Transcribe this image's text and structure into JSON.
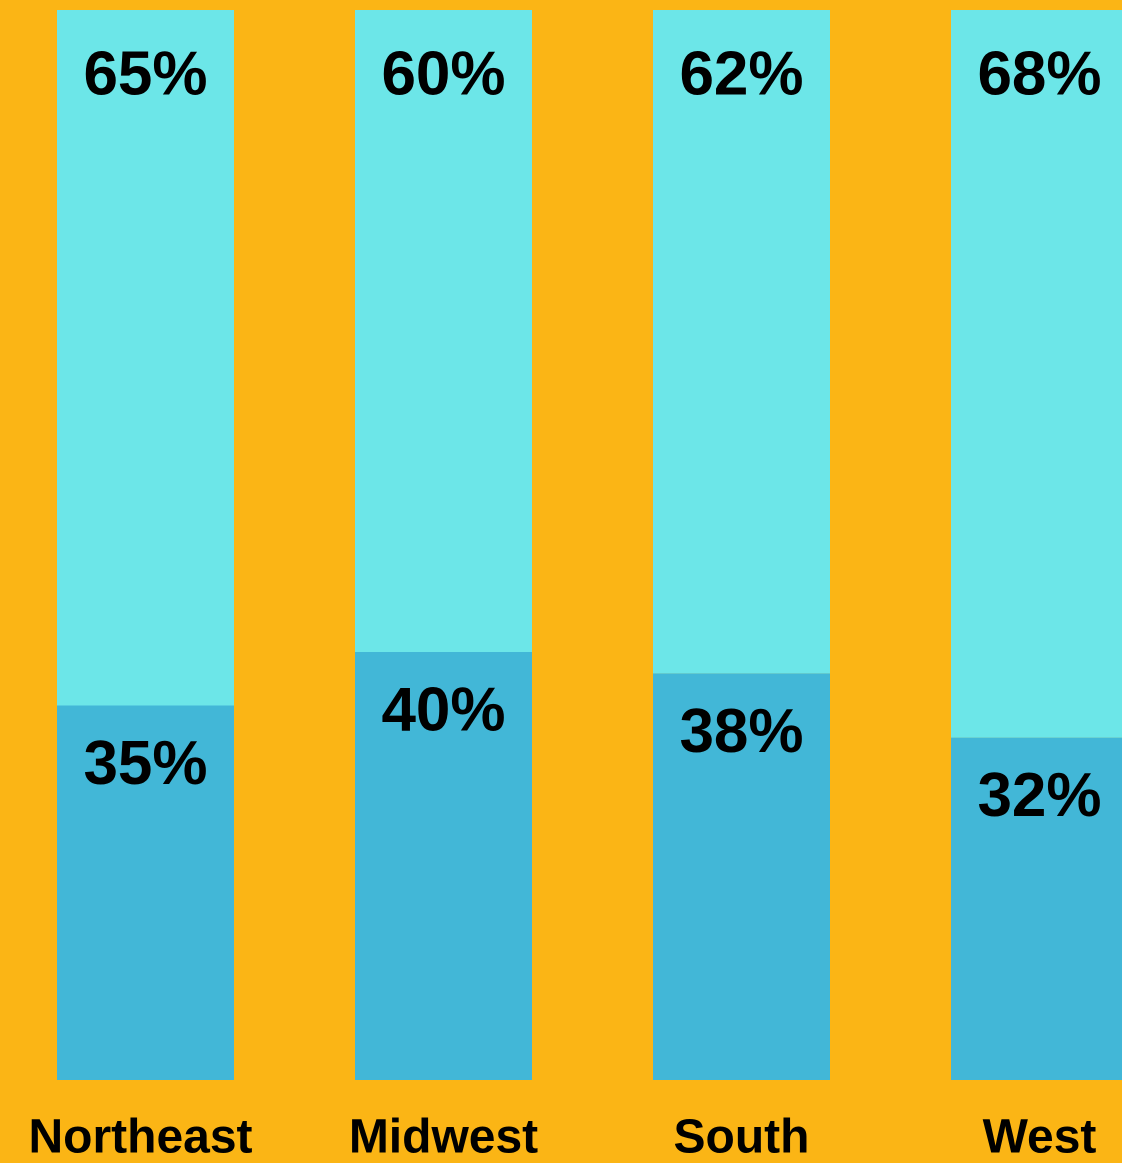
{
  "chart_data": {
    "type": "stacked-bar",
    "categories": [
      "Northeast",
      "Midwest",
      "South",
      "West"
    ],
    "series": [
      {
        "color": "#42b7d7",
        "values": [
          35,
          40,
          38,
          32
        ],
        "value_labels": [
          "35%",
          "40%",
          "38%",
          "32%"
        ]
      },
      {
        "color": "#6ce6e8",
        "values": [
          65,
          60,
          62,
          68
        ],
        "value_labels": [
          "65%",
          "60%",
          "62%",
          "68%"
        ]
      }
    ],
    "ylim": [
      0,
      100
    ],
    "background": "#fbb515"
  }
}
